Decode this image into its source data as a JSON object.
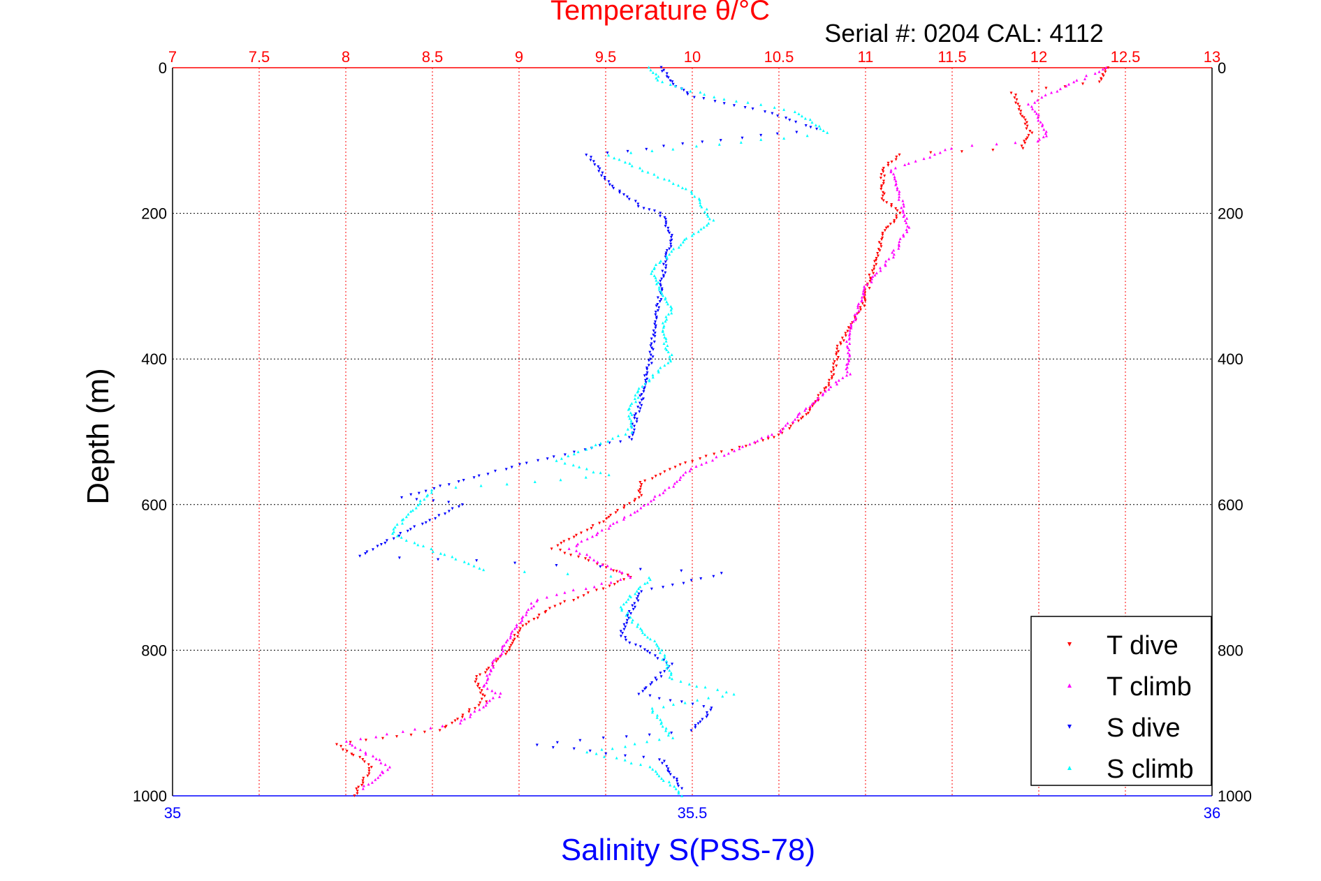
{
  "chart_data": {
    "type": "scatter",
    "title": "Temperature θ/°C",
    "subtitle": "Serial #: 0204  CAL: 4112",
    "ylabel": "Depth (m)",
    "xlabel_bottom": "Salinity S(PSS-78)",
    "ylim": [
      0,
      1000
    ],
    "y_reversed": true,
    "y_ticks": [
      0,
      200,
      400,
      600,
      800,
      1000
    ],
    "xlim_temperature": [
      7,
      13
    ],
    "temperature_ticks": [
      "7",
      "7.5",
      "8",
      "8.5",
      "9",
      "9.5",
      "10",
      "10.5",
      "11",
      "11.5",
      "12",
      "12.5",
      "13"
    ],
    "xlim_salinity": [
      35,
      36
    ],
    "salinity_ticks": [
      "35",
      "35.5",
      "36"
    ],
    "grid": true,
    "legend_position": "bottom-right",
    "series": [
      {
        "name": "T dive",
        "axis": "temperature",
        "color": "#ff0000",
        "marker": "triangle-down",
        "points": [
          [
            12.4,
            0
          ],
          [
            12.35,
            20
          ],
          [
            11.85,
            35
          ],
          [
            11.9,
            60
          ],
          [
            11.95,
            90
          ],
          [
            11.9,
            110
          ],
          [
            11.2,
            120
          ],
          [
            11.1,
            140
          ],
          [
            11.1,
            180
          ],
          [
            11.2,
            200
          ],
          [
            11.1,
            230
          ],
          [
            11.05,
            270
          ],
          [
            10.98,
            330
          ],
          [
            10.85,
            380
          ],
          [
            10.8,
            430
          ],
          [
            10.65,
            480
          ],
          [
            10.45,
            510
          ],
          [
            10.0,
            540
          ],
          [
            9.7,
            570
          ],
          [
            9.7,
            590
          ],
          [
            9.5,
            620
          ],
          [
            9.2,
            660
          ],
          [
            9.55,
            690
          ],
          [
            9.65,
            700
          ],
          [
            9.2,
            740
          ],
          [
            9.0,
            770
          ],
          [
            8.95,
            800
          ],
          [
            8.75,
            840
          ],
          [
            8.8,
            870
          ],
          [
            8.55,
            910
          ],
          [
            7.95,
            930
          ],
          [
            8.15,
            960
          ],
          [
            8.05,
            1000
          ]
        ]
      },
      {
        "name": "T climb",
        "axis": "temperature",
        "color": "#ff00ff",
        "marker": "triangle-up",
        "points": [
          [
            12.4,
            0
          ],
          [
            12.2,
            20
          ],
          [
            11.95,
            50
          ],
          [
            12.05,
            90
          ],
          [
            12.0,
            100
          ],
          [
            11.5,
            110
          ],
          [
            11.15,
            140
          ],
          [
            11.2,
            180
          ],
          [
            11.25,
            220
          ],
          [
            11.15,
            260
          ],
          [
            11.0,
            300
          ],
          [
            10.9,
            370
          ],
          [
            10.9,
            420
          ],
          [
            10.6,
            480
          ],
          [
            10.5,
            500
          ],
          [
            10.0,
            550
          ],
          [
            9.85,
            580
          ],
          [
            9.6,
            620
          ],
          [
            9.3,
            660
          ],
          [
            9.65,
            700
          ],
          [
            9.1,
            730
          ],
          [
            8.95,
            780
          ],
          [
            8.85,
            820
          ],
          [
            8.8,
            850
          ],
          [
            8.9,
            860
          ],
          [
            8.65,
            900
          ],
          [
            8.0,
            925
          ],
          [
            8.25,
            960
          ],
          [
            8.1,
            990
          ]
        ]
      },
      {
        "name": "S dive",
        "axis": "salinity",
        "color": "#0000ff",
        "marker": "triangle-down",
        "points": [
          [
            35.47,
            0
          ],
          [
            35.48,
            20
          ],
          [
            35.5,
            40
          ],
          [
            35.57,
            60
          ],
          [
            35.62,
            85
          ],
          [
            35.4,
            120
          ],
          [
            35.42,
            160
          ],
          [
            35.45,
            190
          ],
          [
            35.47,
            200
          ],
          [
            35.48,
            230
          ],
          [
            35.47,
            300
          ],
          [
            35.46,
            400
          ],
          [
            35.45,
            460
          ],
          [
            35.44,
            510
          ],
          [
            35.35,
            540
          ],
          [
            35.22,
            590
          ],
          [
            35.28,
            600
          ],
          [
            35.22,
            640
          ],
          [
            35.18,
            670
          ],
          [
            35.33,
            680
          ],
          [
            35.53,
            695
          ],
          [
            35.45,
            720
          ],
          [
            35.43,
            780
          ],
          [
            35.48,
            820
          ],
          [
            35.45,
            860
          ],
          [
            35.52,
            880
          ],
          [
            35.5,
            910
          ],
          [
            35.35,
            930
          ],
          [
            35.47,
            950
          ],
          [
            35.49,
            990
          ]
        ]
      },
      {
        "name": "S climb",
        "axis": "salinity",
        "color": "#00ffff",
        "marker": "triangle-up",
        "points": [
          [
            35.46,
            0
          ],
          [
            35.47,
            20
          ],
          [
            35.52,
            40
          ],
          [
            35.6,
            60
          ],
          [
            35.63,
            90
          ],
          [
            35.42,
            120
          ],
          [
            35.5,
            170
          ],
          [
            35.52,
            210
          ],
          [
            35.49,
            240
          ],
          [
            35.46,
            280
          ],
          [
            35.48,
            330
          ],
          [
            35.47,
            360
          ],
          [
            35.48,
            400
          ],
          [
            35.45,
            440
          ],
          [
            35.44,
            470
          ],
          [
            35.44,
            500
          ],
          [
            35.37,
            540
          ],
          [
            35.42,
            560
          ],
          [
            35.25,
            580
          ],
          [
            35.21,
            640
          ],
          [
            35.3,
            690
          ],
          [
            35.46,
            700
          ],
          [
            35.43,
            740
          ],
          [
            35.45,
            770
          ],
          [
            35.47,
            800
          ],
          [
            35.48,
            840
          ],
          [
            35.54,
            860
          ],
          [
            35.46,
            880
          ],
          [
            35.48,
            920
          ],
          [
            35.4,
            940
          ],
          [
            35.46,
            960
          ],
          [
            35.49,
            1000
          ]
        ]
      }
    ]
  }
}
